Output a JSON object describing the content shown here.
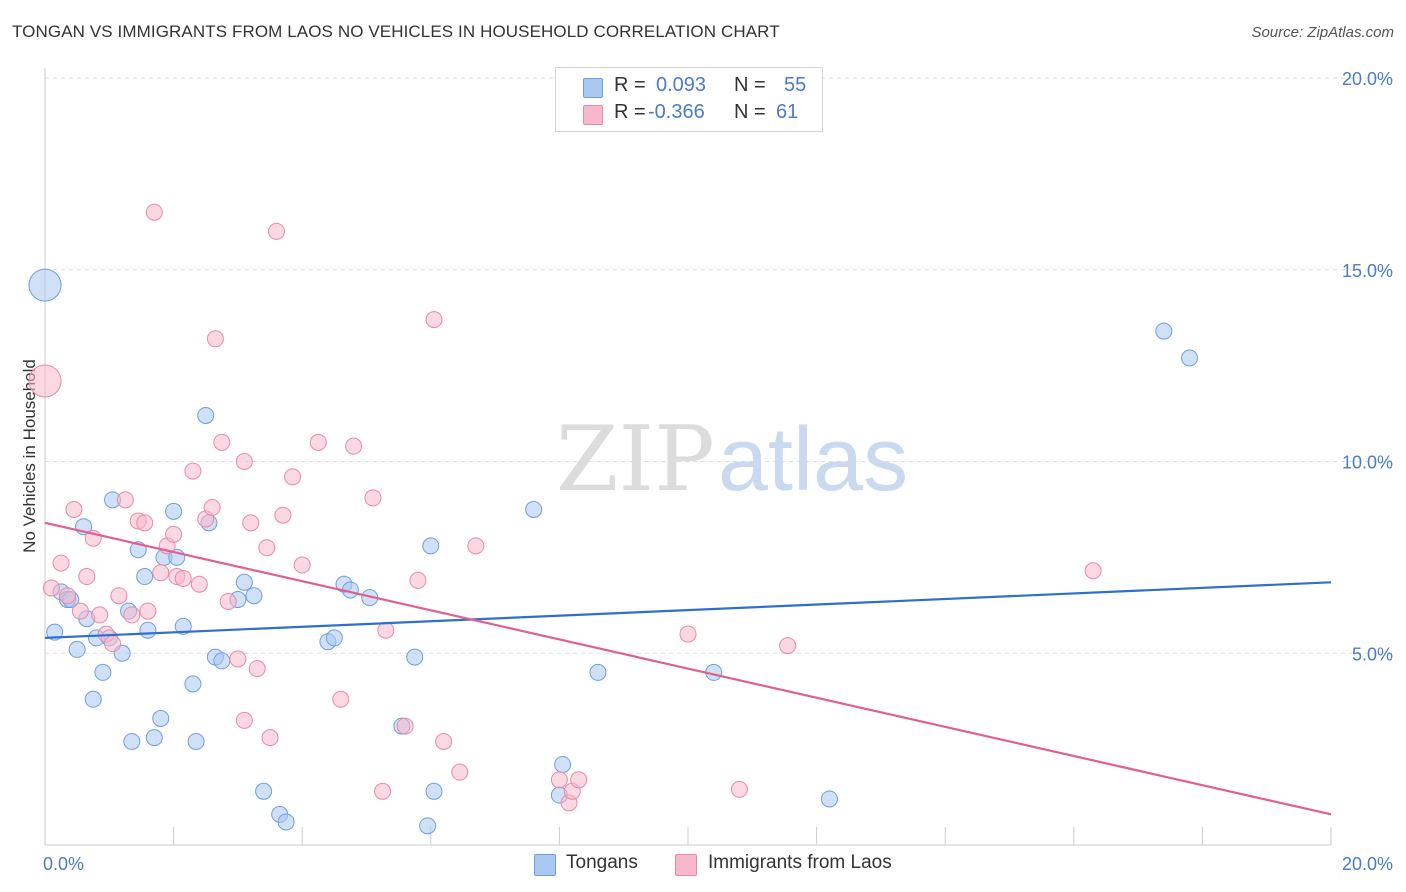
{
  "header": {
    "title": "TONGAN VS IMMIGRANTS FROM LAOS NO VEHICLES IN HOUSEHOLD CORRELATION CHART",
    "source": "Source: ZipAtlas.com"
  },
  "watermark": {
    "part1": "ZIP",
    "part2": "atlas"
  },
  "legend_top": {
    "rows": [
      {
        "r_label": "R =",
        "r_value": "0.093",
        "n_label": "N =",
        "n_value": "55",
        "color": "#a9c8f0"
      },
      {
        "r_label": "R =",
        "r_value": "-0.366",
        "n_label": "N =",
        "n_value": "61",
        "color": "#f7b8cb"
      }
    ]
  },
  "legend_bottom": {
    "items": [
      {
        "label": "Tongans",
        "color": "#a9c8f0"
      },
      {
        "label": "Immigrants from Laos",
        "color": "#f7b8cb"
      }
    ]
  },
  "chart_data": {
    "type": "scatter",
    "title": "TONGAN VS IMMIGRANTS FROM LAOS NO VEHICLES IN HOUSEHOLD CORRELATION CHART",
    "xlabel": "",
    "ylabel": "No Vehicles in Household",
    "xlim": [
      0,
      20
    ],
    "ylim": [
      0,
      20
    ],
    "x_tick_labels": [
      "0.0%",
      "20.0%"
    ],
    "y_tick_labels": [
      "5.0%",
      "10.0%",
      "15.0%",
      "20.0%"
    ],
    "y_ticks": [
      5,
      10,
      15,
      20
    ],
    "grid": true,
    "legend_position": "top-center",
    "series": [
      {
        "name": "Tongans",
        "color": "#a9c8f0",
        "stroke": "#6e9fe0",
        "line_color": "#2e6fd1",
        "trend": {
          "x": [
            0,
            20
          ],
          "y": [
            5.4,
            6.85
          ]
        },
        "points": [
          [
            0.0,
            14.6,
            2
          ],
          [
            0.15,
            5.55,
            1
          ],
          [
            0.25,
            6.6,
            1
          ],
          [
            0.35,
            6.4,
            1
          ],
          [
            0.4,
            6.4,
            1
          ],
          [
            0.5,
            5.1,
            1
          ],
          [
            0.6,
            8.3,
            1
          ],
          [
            0.65,
            5.9,
            1
          ],
          [
            0.75,
            3.8,
            1
          ],
          [
            0.8,
            5.4,
            1
          ],
          [
            0.9,
            4.5,
            1
          ],
          [
            1.0,
            5.4,
            1
          ],
          [
            1.05,
            9.0,
            1
          ],
          [
            1.2,
            5.0,
            1
          ],
          [
            1.3,
            6.1,
            1
          ],
          [
            1.35,
            2.7,
            1
          ],
          [
            1.45,
            7.7,
            1
          ],
          [
            1.55,
            7.0,
            1
          ],
          [
            1.6,
            5.6,
            1
          ],
          [
            1.7,
            2.8,
            1
          ],
          [
            1.8,
            3.3,
            1
          ],
          [
            1.85,
            7.5,
            1
          ],
          [
            2.0,
            8.7,
            1
          ],
          [
            2.05,
            7.5,
            1
          ],
          [
            2.15,
            5.7,
            1
          ],
          [
            2.3,
            4.2,
            1
          ],
          [
            2.35,
            2.7,
            1
          ],
          [
            2.5,
            11.2,
            1
          ],
          [
            2.55,
            8.4,
            1
          ],
          [
            2.65,
            4.9,
            1
          ],
          [
            2.75,
            4.8,
            1
          ],
          [
            3.0,
            6.4,
            1
          ],
          [
            3.1,
            6.85,
            1
          ],
          [
            3.25,
            6.5,
            1
          ],
          [
            3.4,
            1.4,
            1
          ],
          [
            3.65,
            0.8,
            1
          ],
          [
            3.75,
            0.6,
            1
          ],
          [
            4.4,
            5.3,
            1
          ],
          [
            4.5,
            5.4,
            1
          ],
          [
            4.65,
            6.8,
            1
          ],
          [
            4.75,
            6.65,
            1
          ],
          [
            5.05,
            6.45,
            1
          ],
          [
            5.55,
            3.1,
            1
          ],
          [
            5.75,
            4.9,
            1
          ],
          [
            5.95,
            0.5,
            1
          ],
          [
            6.05,
            1.4,
            1
          ],
          [
            6.0,
            7.8,
            1
          ],
          [
            7.6,
            8.75,
            1
          ],
          [
            8.0,
            1.3,
            1
          ],
          [
            8.05,
            2.1,
            1
          ],
          [
            8.6,
            4.5,
            1
          ],
          [
            10.4,
            4.5,
            1
          ],
          [
            12.2,
            1.2,
            1
          ],
          [
            17.4,
            13.4,
            1
          ],
          [
            17.8,
            12.7,
            1
          ]
        ]
      },
      {
        "name": "Immigrants from Laos",
        "color": "#f7b8cb",
        "stroke": "#e98aa7",
        "line_color": "#e0608f",
        "trend": {
          "x": [
            0,
            20
          ],
          "y": [
            8.4,
            0.8
          ]
        },
        "points": [
          [
            0.0,
            12.1,
            2
          ],
          [
            0.1,
            6.7,
            1
          ],
          [
            0.25,
            7.35,
            1
          ],
          [
            0.35,
            6.5,
            1
          ],
          [
            0.45,
            8.75,
            1
          ],
          [
            0.55,
            6.1,
            1
          ],
          [
            0.65,
            7.0,
            1
          ],
          [
            0.75,
            8.0,
            1
          ],
          [
            0.85,
            6.0,
            1
          ],
          [
            0.95,
            5.5,
            1
          ],
          [
            1.05,
            5.25,
            1
          ],
          [
            1.15,
            6.5,
            1
          ],
          [
            1.25,
            9.0,
            1
          ],
          [
            1.35,
            6.0,
            1
          ],
          [
            1.45,
            8.45,
            1
          ],
          [
            1.55,
            8.4,
            1
          ],
          [
            1.6,
            6.1,
            1
          ],
          [
            1.7,
            16.5,
            1
          ],
          [
            1.8,
            7.1,
            1
          ],
          [
            1.9,
            7.8,
            1
          ],
          [
            2.0,
            8.1,
            1
          ],
          [
            2.05,
            7.0,
            1
          ],
          [
            2.15,
            6.95,
            1
          ],
          [
            2.3,
            9.75,
            1
          ],
          [
            2.4,
            6.8,
            1
          ],
          [
            2.5,
            8.5,
            1
          ],
          [
            2.6,
            8.8,
            1
          ],
          [
            2.65,
            13.2,
            1
          ],
          [
            2.75,
            10.5,
            1
          ],
          [
            2.85,
            6.35,
            1
          ],
          [
            3.0,
            4.85,
            1
          ],
          [
            3.1,
            10.0,
            1
          ],
          [
            3.1,
            3.25,
            1
          ],
          [
            3.2,
            8.4,
            1
          ],
          [
            3.3,
            4.6,
            1
          ],
          [
            3.45,
            7.75,
            1
          ],
          [
            3.5,
            2.8,
            1
          ],
          [
            3.6,
            16.0,
            1
          ],
          [
            3.7,
            8.6,
            1
          ],
          [
            3.85,
            9.6,
            1
          ],
          [
            4.0,
            7.3,
            1
          ],
          [
            4.25,
            10.5,
            1
          ],
          [
            4.6,
            3.8,
            1
          ],
          [
            4.8,
            10.4,
            1
          ],
          [
            5.1,
            9.05,
            1
          ],
          [
            5.25,
            1.4,
            1
          ],
          [
            5.3,
            5.6,
            1
          ],
          [
            5.6,
            3.1,
            1
          ],
          [
            5.8,
            6.9,
            1
          ],
          [
            6.05,
            13.7,
            1
          ],
          [
            6.2,
            2.7,
            1
          ],
          [
            6.45,
            1.9,
            1
          ],
          [
            6.7,
            7.8,
            1
          ],
          [
            8.0,
            1.7,
            1
          ],
          [
            8.15,
            1.1,
            1
          ],
          [
            8.2,
            1.4,
            1
          ],
          [
            8.3,
            1.7,
            1
          ],
          [
            10.0,
            5.5,
            1
          ],
          [
            10.8,
            1.45,
            1
          ],
          [
            11.55,
            5.2,
            1
          ],
          [
            16.3,
            7.15,
            1
          ]
        ]
      }
    ]
  }
}
